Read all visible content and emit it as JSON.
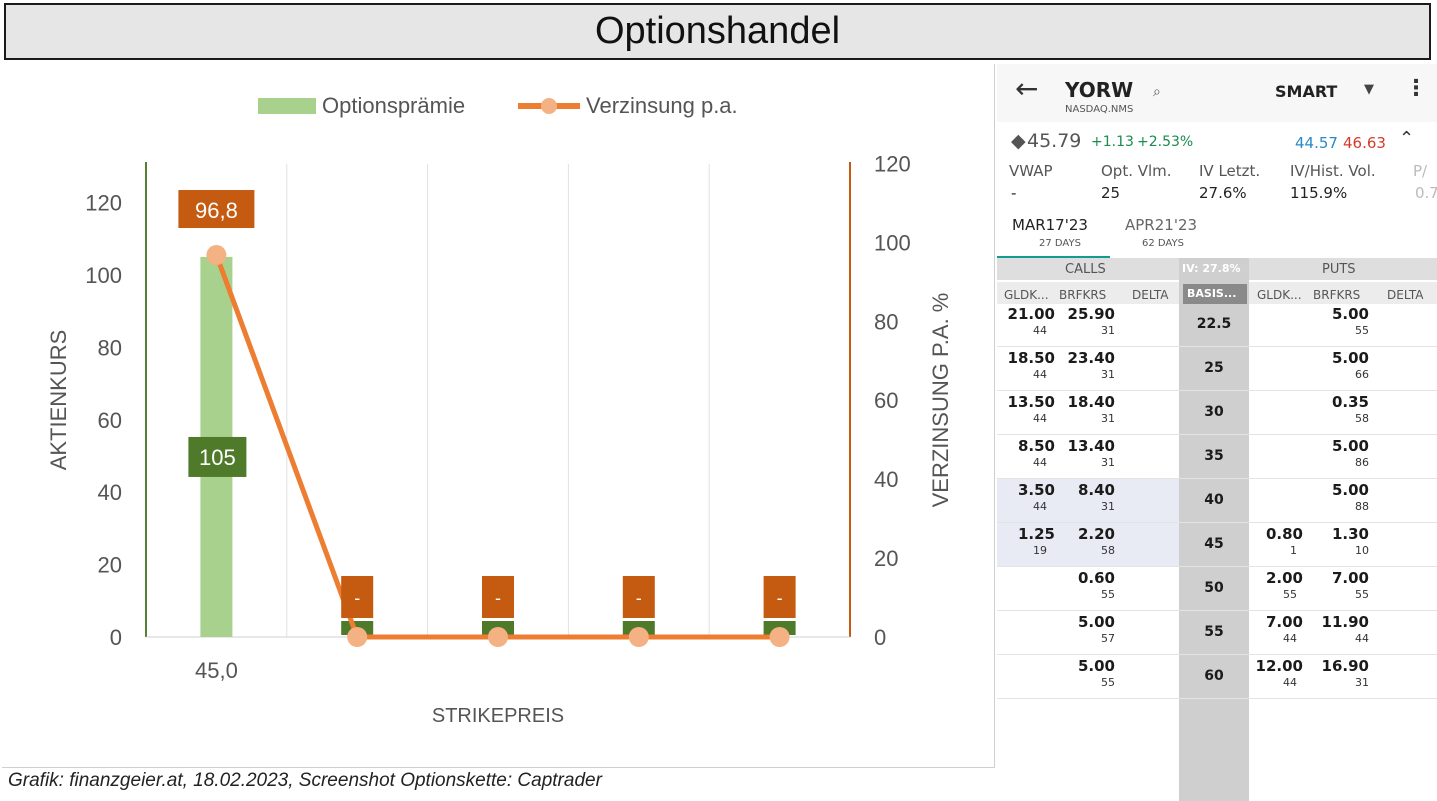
{
  "title": "Optionshandel",
  "caption": "Grafik: finanzgeier.at, 18.02.2023, Screenshot Optionskette: Captrader",
  "colors": {
    "bar": "#a9d18e",
    "line": "#ed7d31",
    "marker": "#f4b183",
    "label_bar": "#4e7a2a",
    "label_line": "#c55a11",
    "left_axis": "#548235",
    "right_axis": "#c55a11",
    "accent": "#159a8e"
  },
  "chart_data": {
    "type": "bar+line",
    "categories": [
      "45,0",
      "",
      "",
      "",
      ""
    ],
    "series": [
      {
        "name": "Optionsprämie",
        "type": "bar",
        "axis": "left",
        "values": [
          105,
          0,
          0,
          0,
          0
        ],
        "labels": [
          "105",
          "-",
          "-",
          "-",
          "-"
        ]
      },
      {
        "name": "Verzinsung p.a.",
        "type": "line",
        "axis": "right",
        "values": [
          96.8,
          0,
          0,
          0,
          0
        ],
        "labels": [
          "96,8",
          "-",
          "-",
          "-",
          "-"
        ]
      }
    ],
    "xlabel": "STRIKEPREIS",
    "ylabel": "AKTIENKURS",
    "ylabel_right": "VERZINSUNG P.A. %",
    "ylim": [
      0,
      130
    ],
    "yticks": [
      0,
      20,
      40,
      60,
      80,
      100,
      120
    ],
    "ylim_right": [
      0,
      120
    ],
    "yticks_right": [
      0,
      20,
      40,
      60,
      80,
      100,
      120
    ],
    "grid": "vertical",
    "legend": "top-center"
  },
  "panel": {
    "back_icon": "arrow-left-icon",
    "symbol": "YORW",
    "exchange": "NASDAQ.NMS",
    "search_icon": "magnifier-icon",
    "route": "SMART",
    "price_diamond": "◆",
    "price": "45.79",
    "change": "+1.13",
    "change_pct": "+2.53%",
    "bid": "44.57",
    "ask": "46.63",
    "stats": [
      {
        "label": "VWAP",
        "value": "-"
      },
      {
        "label": "Opt. Vlm.",
        "value": "25"
      },
      {
        "label": "IV Letzt.",
        "value": "27.6%"
      },
      {
        "label": "IV/Hist. Vol.",
        "value": "115.9%"
      },
      {
        "label": "P/",
        "value": "0.7"
      }
    ],
    "tabs": [
      {
        "label": "MAR17'23",
        "sub": "27 DAYS"
      },
      {
        "label": "APR21'23",
        "sub": "62 DAYS"
      }
    ],
    "calls_label": "CALLS",
    "puts_label": "PUTS",
    "iv_label": "IV: 27.8%",
    "basis_label": "BASIS...",
    "col_headers": [
      "GLDK...",
      "BRFKRS",
      "DELTA",
      "GLDK...",
      "BRFKRS",
      "DELTA"
    ],
    "rows": [
      {
        "strike": "22.5",
        "c_bid": "21.00",
        "c_bid_sz": "44",
        "c_ask": "25.90",
        "c_ask_sz": "31",
        "p_bid": "",
        "p_bid_sz": "",
        "p_ask": "5.00",
        "p_ask_sz": "55"
      },
      {
        "strike": "25",
        "c_bid": "18.50",
        "c_bid_sz": "44",
        "c_ask": "23.40",
        "c_ask_sz": "31",
        "p_bid": "",
        "p_bid_sz": "",
        "p_ask": "5.00",
        "p_ask_sz": "66"
      },
      {
        "strike": "30",
        "c_bid": "13.50",
        "c_bid_sz": "44",
        "c_ask": "18.40",
        "c_ask_sz": "31",
        "p_bid": "",
        "p_bid_sz": "",
        "p_ask": "0.35",
        "p_ask_sz": "58"
      },
      {
        "strike": "35",
        "c_bid": "8.50",
        "c_bid_sz": "44",
        "c_ask": "13.40",
        "c_ask_sz": "31",
        "p_bid": "",
        "p_bid_sz": "",
        "p_ask": "5.00",
        "p_ask_sz": "86"
      },
      {
        "strike": "40",
        "c_bid": "3.50",
        "c_bid_sz": "44",
        "c_ask": "8.40",
        "c_ask_sz": "31",
        "p_bid": "",
        "p_bid_sz": "",
        "p_ask": "5.00",
        "p_ask_sz": "88"
      },
      {
        "strike": "45",
        "c_bid": "1.25",
        "c_bid_sz": "19",
        "c_ask": "2.20",
        "c_ask_sz": "58",
        "p_bid": "0.80",
        "p_bid_sz": "1",
        "p_ask": "1.30",
        "p_ask_sz": "10"
      },
      {
        "strike": "50",
        "c_bid": "",
        "c_bid_sz": "",
        "c_ask": "0.60",
        "c_ask_sz": "55",
        "p_bid": "2.00",
        "p_bid_sz": "55",
        "p_ask": "7.00",
        "p_ask_sz": "55"
      },
      {
        "strike": "55",
        "c_bid": "",
        "c_bid_sz": "",
        "c_ask": "5.00",
        "c_ask_sz": "57",
        "p_bid": "7.00",
        "p_bid_sz": "44",
        "p_ask": "11.90",
        "p_ask_sz": "44"
      },
      {
        "strike": "60",
        "c_bid": "",
        "c_bid_sz": "",
        "c_ask": "5.00",
        "c_ask_sz": "55",
        "p_bid": "12.00",
        "p_bid_sz": "44",
        "p_ask": "16.90",
        "p_ask_sz": "31"
      }
    ]
  }
}
